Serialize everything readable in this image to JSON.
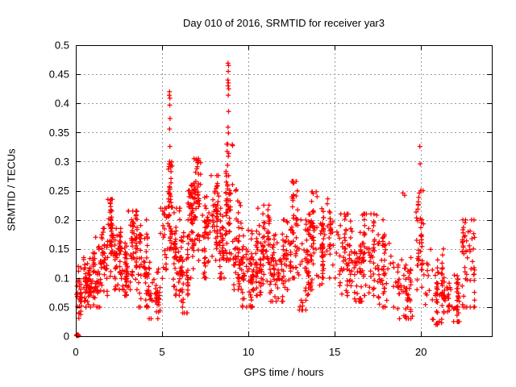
{
  "page": {
    "background": "#ffffff"
  },
  "chart_data": {
    "type": "scatter",
    "title": "Day 010 of 2016, SRMTID for receiver yar3",
    "xlabel": "GPS time / hours",
    "ylabel": "SRMTID / TECUs",
    "xlim": [
      0,
      24.1
    ],
    "ylim": [
      0,
      0.5
    ],
    "xticks": {
      "values": [
        0,
        5,
        10,
        15,
        20
      ],
      "labels": [
        "0",
        "5",
        "10",
        "15",
        "20"
      ]
    },
    "yticks": {
      "values": [
        0,
        0.05,
        0.1,
        0.15,
        0.2,
        0.25,
        0.3,
        0.35,
        0.4,
        0.45,
        0.5
      ],
      "labels": [
        "0",
        "0.05",
        "0.1",
        "0.15",
        "0.2",
        "0.25",
        "0.3",
        "0.35",
        "0.4",
        "0.45",
        "0.5"
      ]
    },
    "grid": {
      "show": true,
      "style": "dashed",
      "color": "#9a9a9a"
    },
    "legend": "none",
    "marker": {
      "shape": "plus",
      "color": "#ff0000",
      "size": 7
    },
    "axis_color": "#000000",
    "series": [
      {
        "name": "SRMTID",
        "cluster_format": [
          "x_start_hour",
          "x_end_hour",
          "y_min_TECU",
          "y_max_TECU",
          "density_bias",
          "count"
        ],
        "clusters": [
          [
            0.04,
            0.18,
            0.0,
            0.004,
            0.5,
            10
          ],
          [
            0.05,
            0.3,
            0.03,
            0.125,
            0.45,
            28
          ],
          [
            0.3,
            0.9,
            0.05,
            0.135,
            0.45,
            62
          ],
          [
            0.9,
            1.5,
            0.05,
            0.17,
            0.45,
            55
          ],
          [
            1.5,
            1.85,
            0.07,
            0.185,
            0.5,
            35
          ],
          [
            1.8,
            2.15,
            0.1,
            0.235,
            0.65,
            45
          ],
          [
            2.15,
            2.6,
            0.08,
            0.185,
            0.5,
            48
          ],
          [
            2.6,
            3.0,
            0.07,
            0.16,
            0.45,
            45
          ],
          [
            3.0,
            3.55,
            0.08,
            0.215,
            0.55,
            58
          ],
          [
            3.55,
            4.2,
            0.05,
            0.2,
            0.45,
            55
          ],
          [
            4.2,
            4.9,
            0.03,
            0.13,
            0.45,
            45
          ],
          [
            4.9,
            5.25,
            0.08,
            0.22,
            0.55,
            22
          ],
          [
            5.3,
            5.65,
            0.15,
            0.3,
            0.5,
            48
          ],
          [
            5.65,
            6.1,
            0.07,
            0.22,
            0.45,
            50
          ],
          [
            6.1,
            6.5,
            0.04,
            0.2,
            0.45,
            50
          ],
          [
            6.5,
            6.85,
            0.1,
            0.26,
            0.55,
            45
          ],
          [
            6.85,
            7.25,
            0.13,
            0.305,
            0.6,
            52
          ],
          [
            7.25,
            7.8,
            0.1,
            0.24,
            0.45,
            45
          ],
          [
            7.8,
            8.3,
            0.12,
            0.276,
            0.55,
            50
          ],
          [
            8.3,
            8.7,
            0.1,
            0.22,
            0.45,
            40
          ],
          [
            8.7,
            9.1,
            0.13,
            0.33,
            0.5,
            55
          ],
          [
            9.1,
            9.6,
            0.08,
            0.25,
            0.4,
            45
          ],
          [
            9.6,
            10.3,
            0.05,
            0.185,
            0.4,
            68
          ],
          [
            10.3,
            10.8,
            0.07,
            0.19,
            0.45,
            45
          ],
          [
            10.8,
            11.25,
            0.09,
            0.225,
            0.55,
            45
          ],
          [
            11.25,
            12.0,
            0.06,
            0.18,
            0.45,
            58
          ],
          [
            12.0,
            12.45,
            0.08,
            0.2,
            0.45,
            40
          ],
          [
            12.45,
            12.9,
            0.1,
            0.266,
            0.55,
            45
          ],
          [
            12.9,
            13.5,
            0.045,
            0.2,
            0.4,
            50
          ],
          [
            13.5,
            14.3,
            0.08,
            0.248,
            0.55,
            62
          ],
          [
            14.3,
            15.2,
            0.1,
            0.238,
            0.5,
            60
          ],
          [
            15.2,
            16.0,
            0.07,
            0.21,
            0.45,
            58
          ],
          [
            16.0,
            16.6,
            0.06,
            0.18,
            0.45,
            48
          ],
          [
            16.6,
            17.5,
            0.07,
            0.21,
            0.5,
            58
          ],
          [
            17.5,
            18.5,
            0.05,
            0.2,
            0.4,
            55
          ],
          [
            18.5,
            19.5,
            0.03,
            0.135,
            0.45,
            58
          ],
          [
            19.7,
            20.15,
            0.08,
            0.25,
            0.5,
            42
          ],
          [
            20.15,
            21.3,
            0.02,
            0.15,
            0.4,
            58
          ],
          [
            21.3,
            22.3,
            0.025,
            0.105,
            0.45,
            58
          ],
          [
            22.3,
            23.1,
            0.05,
            0.2,
            0.5,
            55
          ]
        ],
        "outlier_points": [
          [
            5.42,
            0.414
          ],
          [
            5.43,
            0.42
          ],
          [
            5.45,
            0.409
          ],
          [
            5.44,
            0.397
          ],
          [
            5.46,
            0.374
          ],
          [
            5.43,
            0.356
          ],
          [
            5.45,
            0.326
          ],
          [
            8.82,
            0.469
          ],
          [
            8.85,
            0.465
          ],
          [
            8.83,
            0.455
          ],
          [
            8.81,
            0.44
          ],
          [
            8.84,
            0.435
          ],
          [
            8.82,
            0.43
          ],
          [
            8.86,
            0.425
          ],
          [
            8.83,
            0.414
          ],
          [
            8.85,
            0.386
          ],
          [
            8.82,
            0.359
          ],
          [
            8.84,
            0.349
          ],
          [
            8.86,
            0.314
          ],
          [
            19.93,
            0.326
          ],
          [
            19.95,
            0.296
          ],
          [
            19.9,
            0.246
          ],
          [
            18.95,
            0.246
          ],
          [
            19.05,
            0.242
          ],
          [
            12.62,
            0.263
          ],
          [
            6.98,
            0.304
          ],
          [
            7.05,
            0.298
          ],
          [
            2.0,
            0.234
          ],
          [
            10.55,
            0.22
          ],
          [
            13.75,
            0.245
          ],
          [
            14.6,
            0.236
          ],
          [
            17.1,
            0.21
          ],
          [
            22.55,
            0.195
          ],
          [
            9.3,
            0.252
          ],
          [
            3.3,
            0.215
          ]
        ]
      }
    ]
  }
}
